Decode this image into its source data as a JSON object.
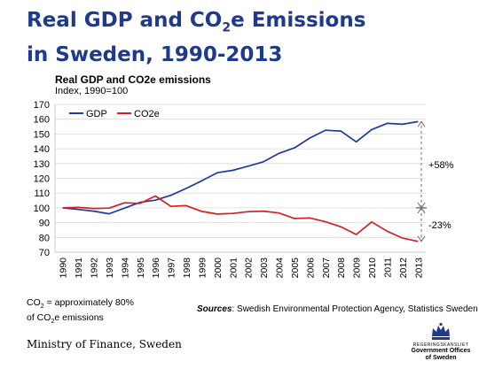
{
  "slide": {
    "title_part1": "Real GDP and CO",
    "title_sub": "2",
    "title_part2": "e Emissions",
    "title_line2": "in Sweden, 1990-2013"
  },
  "footnote": {
    "line1_a": "CO",
    "line1_sub": "2",
    "line1_b": " = approximately 80%",
    "line2_a": "of CO",
    "line2_sub": "2",
    "line2_b": "e emissions"
  },
  "sources": {
    "label": "Sources",
    "text": ": Swedish Environmental Protection Agency, Statistics Sweden"
  },
  "ministry": "Ministry of Finance, Sweden",
  "logo": {
    "kansli": "REGERINGSKANSLIET",
    "line1": "Government Offices",
    "line2": "of Sweden",
    "crown_color": "#1f3a8c"
  },
  "chart_data": {
    "type": "line",
    "title": "Real GDP and CO2e emissions",
    "subtitle": "Index, 1990=100",
    "x": [
      "1990",
      "1991",
      "1992",
      "1993",
      "1994",
      "1995",
      "1996",
      "1997",
      "1998",
      "1999",
      "2000",
      "2001",
      "2002",
      "2003",
      "2004",
      "2005",
      "2006",
      "2007",
      "2008",
      "2009",
      "2010",
      "2011",
      "2012",
      "2013"
    ],
    "ylim": [
      70,
      170
    ],
    "yticks": [
      70,
      80,
      90,
      100,
      110,
      120,
      130,
      140,
      150,
      160,
      170
    ],
    "grid": true,
    "legend": "top-left",
    "series": [
      {
        "name": "GDP",
        "color": "#1f3aa0",
        "values": [
          100,
          98.9,
          97.8,
          96,
          99.8,
          103.7,
          105.2,
          108.5,
          113.2,
          118.3,
          123.8,
          125.4,
          128.2,
          131.2,
          136.9,
          140.6,
          147.3,
          152.5,
          152,
          144.7,
          153,
          157.2,
          156.6,
          158.4
        ]
      },
      {
        "name": "CO2e",
        "color": "#d42020",
        "values": [
          100,
          100.3,
          99.6,
          99.8,
          103.4,
          103,
          108,
          101,
          101.5,
          97.6,
          95.8,
          96.2,
          97.4,
          97.8,
          96.5,
          92.8,
          93.2,
          90.6,
          87.2,
          82,
          90.5,
          84.2,
          79.5,
          77.3
        ]
      }
    ],
    "annotations": [
      {
        "text": "+58%",
        "from": 100,
        "to": 158.4
      },
      {
        "text": "-23%",
        "from": 100,
        "to": 77.3
      }
    ]
  }
}
